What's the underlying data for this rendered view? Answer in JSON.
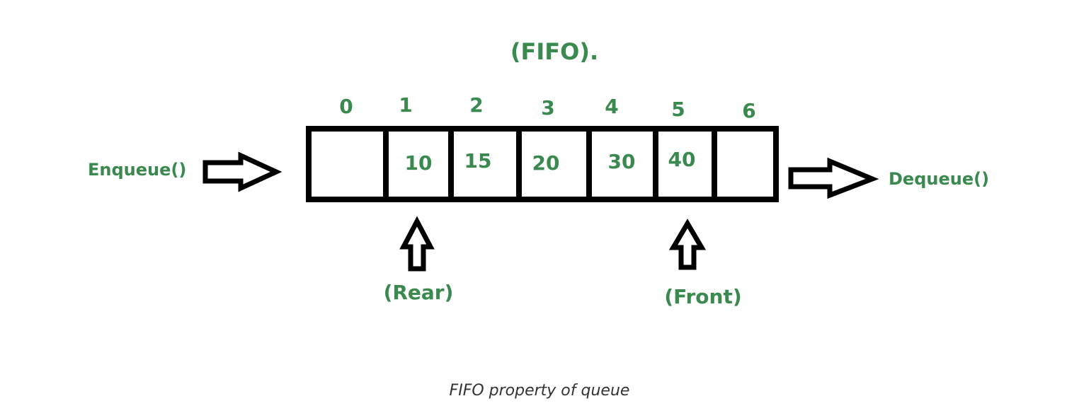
{
  "diagram": {
    "title": "(FIFO).",
    "indices": [
      "0",
      "1",
      "2",
      "3",
      "4",
      "5",
      "6"
    ],
    "cells": [
      "",
      "10",
      "15",
      "20",
      "30",
      "40",
      ""
    ],
    "enqueue_label": "Enqueue()",
    "dequeue_label": "Dequeue()",
    "rear_label": "(Rear)",
    "front_label": "(Front)"
  },
  "caption": "FIFO property of queue",
  "colors": {
    "label_green": "#3a8a4f",
    "stroke": "#000000",
    "caption_text": "#333333"
  }
}
